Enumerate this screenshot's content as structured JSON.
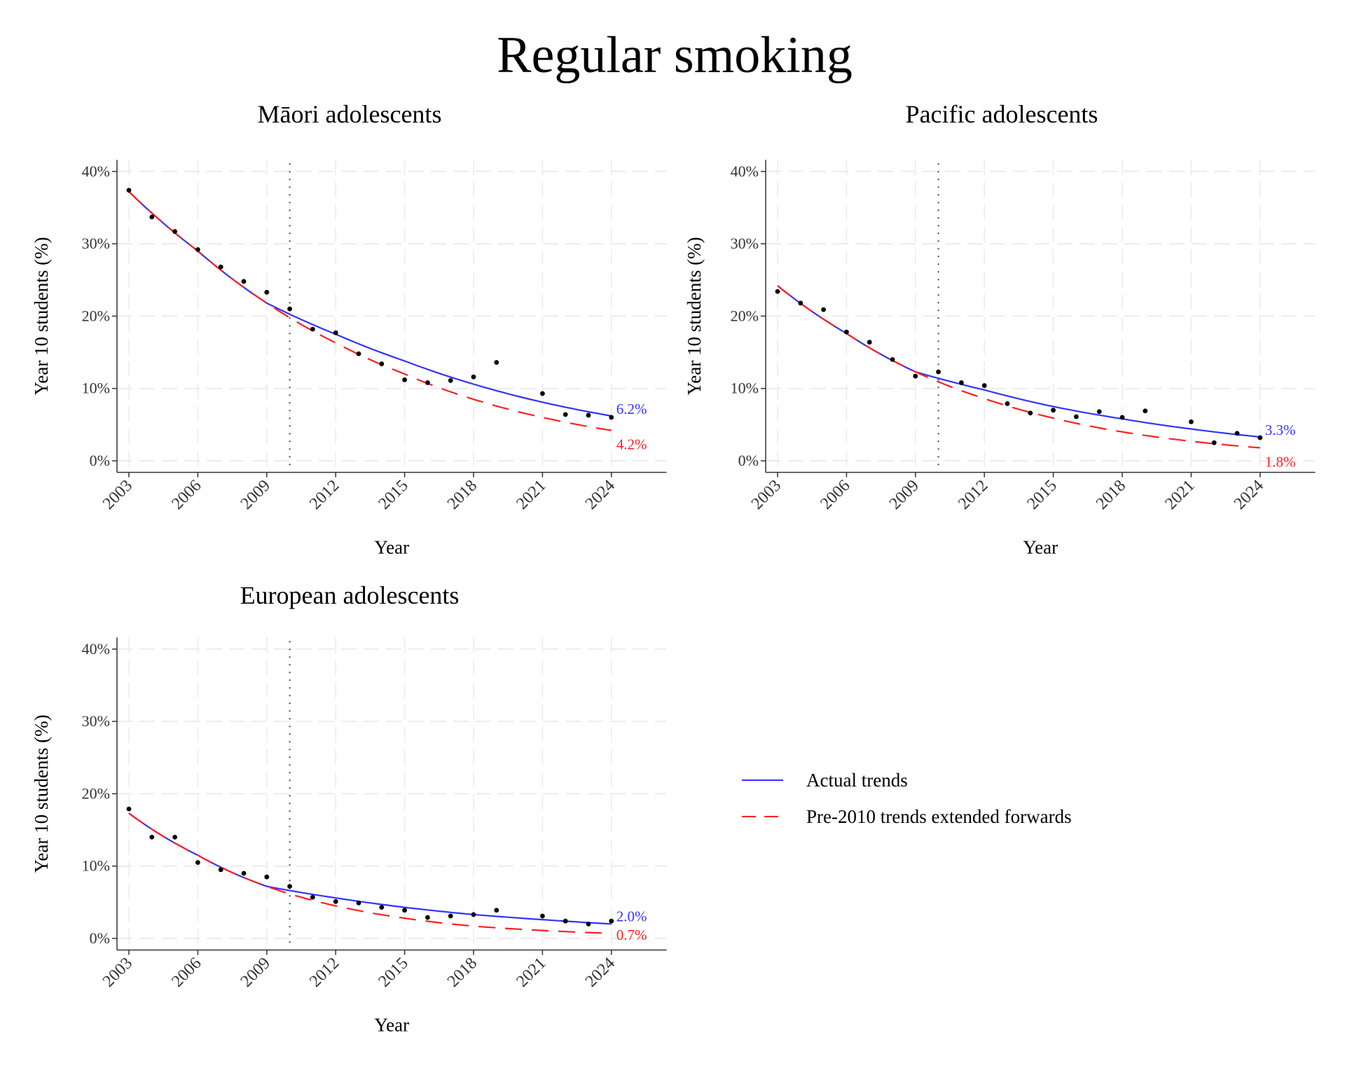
{
  "title": "Regular smoking",
  "legend": {
    "placement": "right",
    "items": [
      {
        "label": "Actual trends",
        "color": "#3333ff",
        "style": "solid"
      },
      {
        "label": "Pre-2010 trends extended forwards",
        "color": "#ff2020",
        "style": "dashed"
      }
    ]
  },
  "colors": {
    "actual": "#3333ff",
    "pre2010": "#ff2020",
    "points": "#000000",
    "grid": "#ebebeb"
  },
  "chart_data": [
    {
      "type": "scatter+line",
      "title": "Māori adolescents",
      "xlabel": "Year",
      "ylabel": "Year 10 students (%)",
      "xticks": [
        2003,
        2006,
        2009,
        2012,
        2015,
        2018,
        2021,
        2024
      ],
      "yticks": [
        "0%",
        "10%",
        "20%",
        "30%",
        "40%"
      ],
      "ytick_values": [
        0,
        10,
        20,
        30,
        40
      ],
      "ylim": [
        -1.6,
        41.6
      ],
      "xlim": [
        2002.5,
        2026.4
      ],
      "grid": true,
      "reference_line_x": 2010,
      "points": {
        "x": [
          2003,
          2004,
          2005,
          2006,
          2007,
          2008,
          2009,
          2010,
          2011,
          2012,
          2013,
          2014,
          2015,
          2016,
          2017,
          2018,
          2019,
          2021,
          2022,
          2023,
          2024
        ],
        "y": [
          37.4,
          33.7,
          31.7,
          29.2,
          26.8,
          24.8,
          23.3,
          21.0,
          18.2,
          17.7,
          14.8,
          13.4,
          11.2,
          10.8,
          11.1,
          11.6,
          13.6,
          9.3,
          6.4,
          6.3,
          6.0
        ]
      },
      "actual_trend": {
        "x": [
          2003,
          2006,
          2009,
          2012,
          2015,
          2018,
          2021,
          2024
        ],
        "y": [
          37.2,
          29.0,
          21.8,
          17.5,
          13.8,
          10.6,
          8.1,
          6.2
        ],
        "end_label": "6.2%"
      },
      "pre2010_trend": {
        "x": [
          2003,
          2006,
          2009,
          2012,
          2015,
          2018,
          2021,
          2024
        ],
        "y": [
          37.2,
          29.0,
          21.8,
          16.3,
          12.0,
          8.5,
          6.0,
          4.2
        ],
        "end_label": "4.2%"
      }
    },
    {
      "type": "scatter+line",
      "title": "Pacific adolescents",
      "xlabel": "Year",
      "ylabel": "Year 10 students (%)",
      "xticks": [
        2003,
        2006,
        2009,
        2012,
        2015,
        2018,
        2021,
        2024
      ],
      "yticks": [
        "0%",
        "10%",
        "20%",
        "30%",
        "40%"
      ],
      "ytick_values": [
        0,
        10,
        20,
        30,
        40
      ],
      "ylim": [
        -1.6,
        41.6
      ],
      "xlim": [
        2002.5,
        2026.4
      ],
      "grid": true,
      "reference_line_x": 2010,
      "points": {
        "x": [
          2003,
          2004,
          2005,
          2006,
          2007,
          2008,
          2009,
          2010,
          2011,
          2012,
          2013,
          2014,
          2015,
          2016,
          2017,
          2018,
          2019,
          2021,
          2022,
          2023,
          2024
        ],
        "y": [
          23.4,
          21.8,
          20.9,
          17.8,
          16.4,
          14.0,
          11.7,
          12.3,
          10.8,
          10.4,
          7.9,
          6.6,
          7.0,
          6.1,
          6.8,
          6.0,
          6.9,
          5.4,
          2.5,
          3.8,
          3.2
        ]
      },
      "actual_trend": {
        "x": [
          2003,
          2006,
          2009,
          2012,
          2015,
          2018,
          2021,
          2024
        ],
        "y": [
          24.2,
          17.6,
          12.3,
          9.8,
          7.5,
          5.8,
          4.4,
          3.3
        ],
        "end_label": "3.3%"
      },
      "pre2010_trend": {
        "x": [
          2003,
          2006,
          2009,
          2012,
          2015,
          2018,
          2021,
          2024
        ],
        "y": [
          24.2,
          17.6,
          12.3,
          8.6,
          5.9,
          4.0,
          2.7,
          1.8
        ],
        "end_label": "1.8%"
      }
    },
    {
      "type": "scatter+line",
      "title": "European adolescents",
      "xlabel": "Year",
      "ylabel": "Year 10 students (%)",
      "xticks": [
        2003,
        2006,
        2009,
        2012,
        2015,
        2018,
        2021,
        2024
      ],
      "yticks": [
        "0%",
        "10%",
        "20%",
        "30%",
        "40%"
      ],
      "ytick_values": [
        0,
        10,
        20,
        30,
        40
      ],
      "ylim": [
        -1.6,
        41.6
      ],
      "xlim": [
        2002.5,
        2026.4
      ],
      "grid": true,
      "reference_line_x": 2010,
      "points": {
        "x": [
          2003,
          2004,
          2005,
          2006,
          2007,
          2008,
          2009,
          2010,
          2011,
          2012,
          2013,
          2014,
          2015,
          2016,
          2017,
          2018,
          2019,
          2021,
          2022,
          2023,
          2024
        ],
        "y": [
          17.9,
          14.0,
          14.0,
          10.5,
          9.5,
          9.0,
          8.5,
          7.2,
          5.7,
          5.1,
          4.9,
          4.3,
          3.9,
          2.9,
          3.1,
          3.3,
          3.9,
          3.1,
          2.4,
          2.0,
          2.4
        ]
      },
      "actual_trend": {
        "x": [
          2003,
          2006,
          2009,
          2012,
          2015,
          2018,
          2021,
          2024
        ],
        "y": [
          17.3,
          11.5,
          7.2,
          5.6,
          4.3,
          3.3,
          2.6,
          2.0
        ],
        "end_label": "2.0%"
      },
      "pre2010_trend": {
        "x": [
          2003,
          2006,
          2009,
          2012,
          2015,
          2018,
          2021,
          2024
        ],
        "y": [
          17.3,
          11.5,
          7.2,
          4.5,
          2.8,
          1.7,
          1.1,
          0.7
        ],
        "end_label": "0.7%"
      }
    }
  ]
}
